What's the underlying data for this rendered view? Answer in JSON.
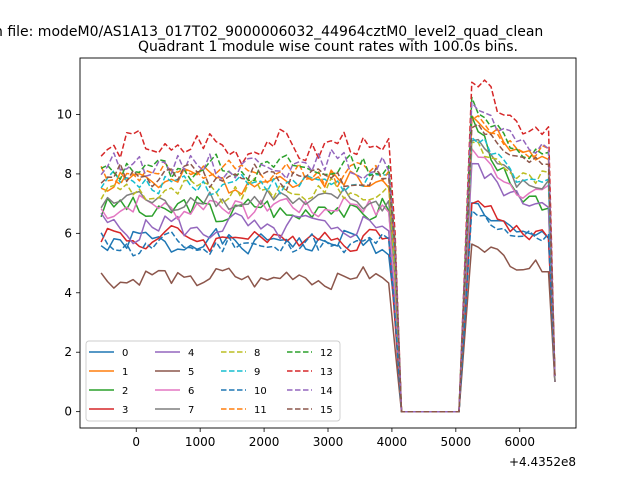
{
  "suptitle": "n file: modeM0/AS1A13_017T02_9000006032_44964cztM0_level2_quad_clean",
  "colors": {
    "c0": "#1f77b4",
    "c1": "#ff7f0e",
    "c2": "#2ca02c",
    "c3": "#d62728",
    "c4": "#9467bd",
    "c5": "#8c564b",
    "c6": "#e377c2",
    "c7": "#7f7f7f",
    "c8": "#bcbd22",
    "c9": "#17becf"
  },
  "chart_data": {
    "type": "line",
    "title": "Quadrant 1 module wise count rates with 100.0s bins.",
    "xlabel": "",
    "ylabel": "",
    "x_offset_label": "+4.4352e8",
    "xlim": [
      -880,
      6880
    ],
    "ylim": [
      -0.55,
      11.9
    ],
    "xticks": [
      0,
      1000,
      2000,
      3000,
      4000,
      5000,
      6000
    ],
    "xtick_labels": [
      "0",
      "1000",
      "2000",
      "3000",
      "4000",
      "5000",
      "6000"
    ],
    "yticks": [
      0,
      2,
      4,
      6,
      8,
      10
    ],
    "ytick_labels": [
      "0",
      "2",
      "4",
      "6",
      "8",
      "10"
    ],
    "grid": false,
    "legend": {
      "placement": "lower-left",
      "columns": 4
    },
    "x": [
      -550,
      -450,
      -350,
      -250,
      -150,
      -50,
      50,
      150,
      250,
      350,
      450,
      550,
      650,
      750,
      850,
      950,
      1050,
      1150,
      1250,
      1350,
      1450,
      1550,
      1650,
      1750,
      1850,
      1950,
      2050,
      2150,
      2250,
      2350,
      2450,
      2550,
      2650,
      2750,
      2850,
      2950,
      3050,
      3150,
      3250,
      3350,
      3450,
      3550,
      3650,
      3750,
      3850,
      3950,
      4050,
      4150,
      5050,
      5250,
      5350,
      5450,
      5550,
      5650,
      5750,
      5850,
      5950,
      6050,
      6150,
      6250,
      6350,
      6450,
      6550
    ],
    "series": [
      {
        "name": "0",
        "color_key": "c0",
        "dash": false,
        "base": 5.7,
        "amp": 0.3,
        "seed": 1,
        "peak": 7.0,
        "tail": 5.9
      },
      {
        "name": "1",
        "color_key": "c1",
        "dash": false,
        "base": 7.8,
        "amp": 0.35,
        "seed": 2,
        "peak": 10.2,
        "tail": 8.6
      },
      {
        "name": "2",
        "color_key": "c2",
        "dash": false,
        "base": 6.8,
        "amp": 0.35,
        "seed": 3,
        "peak": 9.9,
        "tail": 7.0
      },
      {
        "name": "3",
        "color_key": "c3",
        "dash": false,
        "base": 5.85,
        "amp": 0.3,
        "seed": 4,
        "peak": 7.2,
        "tail": 6.0
      },
      {
        "name": "4",
        "color_key": "c4",
        "dash": false,
        "base": 6.2,
        "amp": 0.35,
        "seed": 5,
        "peak": 8.3,
        "tail": 7.1
      },
      {
        "name": "5",
        "color_key": "c5",
        "dash": false,
        "base": 4.5,
        "amp": 0.25,
        "seed": 6,
        "peak": 5.8,
        "tail": 4.9
      },
      {
        "name": "6",
        "color_key": "c6",
        "dash": false,
        "base": 6.9,
        "amp": 0.3,
        "seed": 7,
        "peak": 8.8,
        "tail": 7.4
      },
      {
        "name": "7",
        "color_key": "c7",
        "dash": false,
        "base": 7.1,
        "amp": 0.3,
        "seed": 8,
        "peak": 9.3,
        "tail": 7.6
      },
      {
        "name": "8",
        "color_key": "c8",
        "dash": true,
        "base": 7.4,
        "amp": 0.3,
        "seed": 9,
        "peak": 9.0,
        "tail": 7.9
      },
      {
        "name": "9",
        "color_key": "c9",
        "dash": true,
        "base": 7.7,
        "amp": 0.3,
        "seed": 10,
        "peak": 9.4,
        "tail": 7.7
      },
      {
        "name": "10",
        "color_key": "c0",
        "dash": true,
        "base": 5.6,
        "amp": 0.3,
        "seed": 11,
        "peak": 6.7,
        "tail": 5.9
      },
      {
        "name": "11",
        "color_key": "c1",
        "dash": true,
        "base": 8.0,
        "amp": 0.3,
        "seed": 12,
        "peak": 10.0,
        "tail": 8.8
      },
      {
        "name": "12",
        "color_key": "c2",
        "dash": true,
        "base": 8.2,
        "amp": 0.3,
        "seed": 13,
        "peak": 10.5,
        "tail": 8.7
      },
      {
        "name": "13",
        "color_key": "c3",
        "dash": true,
        "base": 8.9,
        "amp": 0.4,
        "seed": 14,
        "peak": 11.3,
        "tail": 9.6
      },
      {
        "name": "14",
        "color_key": "c4",
        "dash": true,
        "base": 8.3,
        "amp": 0.35,
        "seed": 15,
        "peak": 10.3,
        "tail": 8.9
      },
      {
        "name": "15",
        "color_key": "c5",
        "dash": true,
        "base": 7.9,
        "amp": 0.3,
        "seed": 16,
        "peak": 9.7,
        "tail": 8.4
      }
    ]
  }
}
